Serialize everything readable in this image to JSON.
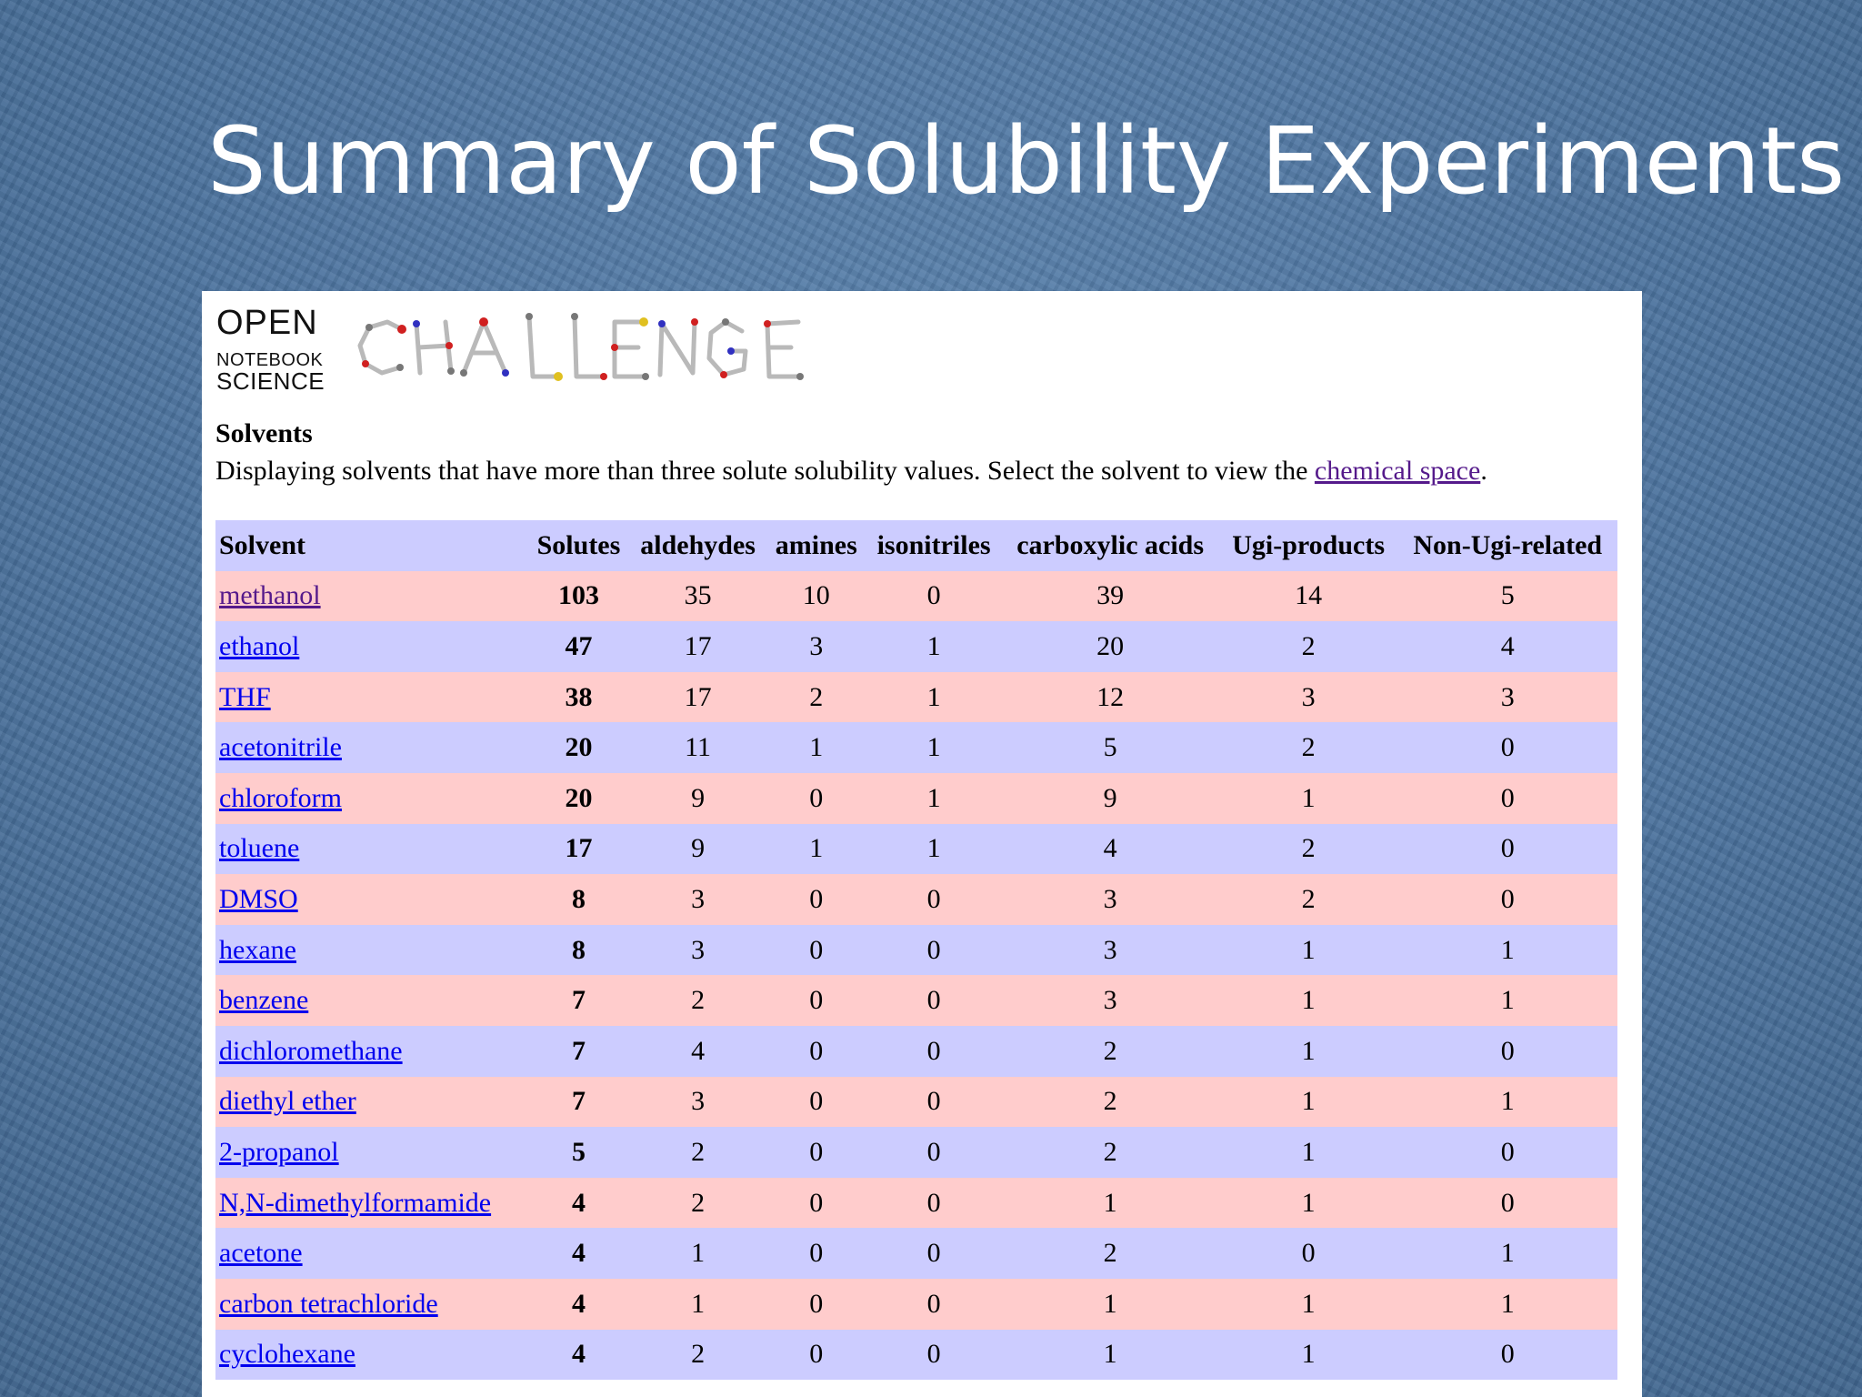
{
  "slide": {
    "title": "Summary of Solubility Experiments"
  },
  "logo": {
    "line1": "OPEN",
    "line2": "NOTEBOOK",
    "line3": "SCIENCE",
    "art_text": "CHALLENGE"
  },
  "section": {
    "heading": "Solvents",
    "description": "Displaying solvents that have more than three solute solubility values. Select the solvent to view the ",
    "link_text": "chemical space",
    "description_end": "."
  },
  "table": {
    "columns": [
      "Solvent",
      "Solutes",
      "aldehydes",
      "amines",
      "isonitriles",
      "carboxylic acids",
      "Ugi-products",
      "Non-Ugi-related"
    ],
    "rows": [
      {
        "solvent": "methanol",
        "solutes": "103",
        "aldehydes": "35",
        "amines": "10",
        "isonitriles": "0",
        "carboxylic_acids": "39",
        "ugi_products": "14",
        "non_ugi": "5"
      },
      {
        "solvent": "ethanol",
        "solutes": "47",
        "aldehydes": "17",
        "amines": "3",
        "isonitriles": "1",
        "carboxylic_acids": "20",
        "ugi_products": "2",
        "non_ugi": "4"
      },
      {
        "solvent": "THF",
        "solutes": "38",
        "aldehydes": "17",
        "amines": "2",
        "isonitriles": "1",
        "carboxylic_acids": "12",
        "ugi_products": "3",
        "non_ugi": "3"
      },
      {
        "solvent": "acetonitrile",
        "solutes": "20",
        "aldehydes": "11",
        "amines": "1",
        "isonitriles": "1",
        "carboxylic_acids": "5",
        "ugi_products": "2",
        "non_ugi": "0"
      },
      {
        "solvent": "chloroform",
        "solutes": "20",
        "aldehydes": "9",
        "amines": "0",
        "isonitriles": "1",
        "carboxylic_acids": "9",
        "ugi_products": "1",
        "non_ugi": "0"
      },
      {
        "solvent": "toluene",
        "solutes": "17",
        "aldehydes": "9",
        "amines": "1",
        "isonitriles": "1",
        "carboxylic_acids": "4",
        "ugi_products": "2",
        "non_ugi": "0"
      },
      {
        "solvent": "DMSO",
        "solutes": "8",
        "aldehydes": "3",
        "amines": "0",
        "isonitriles": "0",
        "carboxylic_acids": "3",
        "ugi_products": "2",
        "non_ugi": "0"
      },
      {
        "solvent": "hexane",
        "solutes": "8",
        "aldehydes": "3",
        "amines": "0",
        "isonitriles": "0",
        "carboxylic_acids": "3",
        "ugi_products": "1",
        "non_ugi": "1"
      },
      {
        "solvent": "benzene",
        "solutes": "7",
        "aldehydes": "2",
        "amines": "0",
        "isonitriles": "0",
        "carboxylic_acids": "3",
        "ugi_products": "1",
        "non_ugi": "1"
      },
      {
        "solvent": "dichloromethane",
        "solutes": "7",
        "aldehydes": "4",
        "amines": "0",
        "isonitriles": "0",
        "carboxylic_acids": "2",
        "ugi_products": "1",
        "non_ugi": "0"
      },
      {
        "solvent": "diethyl ether",
        "solutes": "7",
        "aldehydes": "3",
        "amines": "0",
        "isonitriles": "0",
        "carboxylic_acids": "2",
        "ugi_products": "1",
        "non_ugi": "1"
      },
      {
        "solvent": "2-propanol",
        "solutes": "5",
        "aldehydes": "2",
        "amines": "0",
        "isonitriles": "0",
        "carboxylic_acids": "2",
        "ugi_products": "1",
        "non_ugi": "0"
      },
      {
        "solvent": "N,N-dimethylformamide",
        "solutes": "4",
        "aldehydes": "2",
        "amines": "0",
        "isonitriles": "0",
        "carboxylic_acids": "1",
        "ugi_products": "1",
        "non_ugi": "0"
      },
      {
        "solvent": "acetone",
        "solutes": "4",
        "aldehydes": "1",
        "amines": "0",
        "isonitriles": "0",
        "carboxylic_acids": "2",
        "ugi_products": "0",
        "non_ugi": "1"
      },
      {
        "solvent": "carbon tetrachloride",
        "solutes": "4",
        "aldehydes": "1",
        "amines": "0",
        "isonitriles": "0",
        "carboxylic_acids": "1",
        "ugi_products": "1",
        "non_ugi": "1"
      },
      {
        "solvent": "cyclohexane",
        "solutes": "4",
        "aldehydes": "2",
        "amines": "0",
        "isonitriles": "0",
        "carboxylic_acids": "1",
        "ugi_products": "1",
        "non_ugi": "0"
      }
    ]
  },
  "colors": {
    "row_pink": "#ffcccc",
    "row_lavender": "#ccccff",
    "link": "#0000ee",
    "link_visited": "#551a8b"
  }
}
